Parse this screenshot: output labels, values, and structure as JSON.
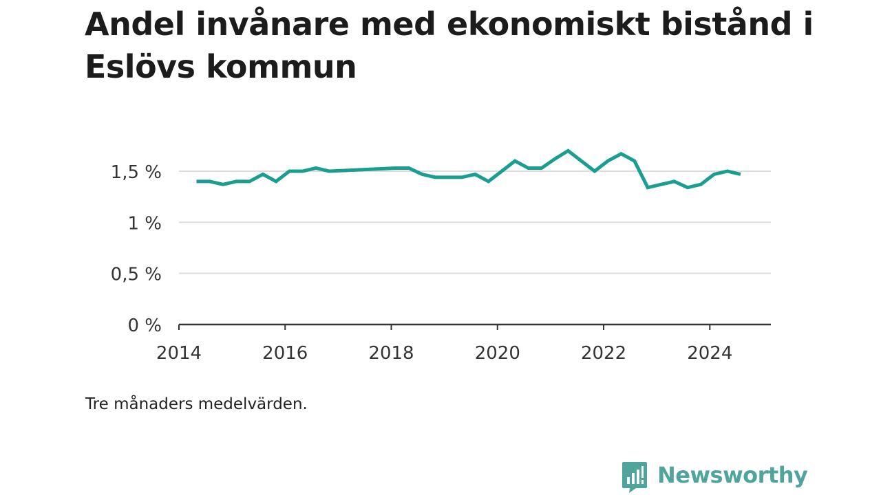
{
  "title": "Andel invånare med ekonomiskt bistånd i Eslövs kommun",
  "note": "Tre månaders medelvärden.",
  "brand": {
    "name": "Newsworthy",
    "color": "#4fa59c",
    "icon": "bar-chart-speech-bubble-icon"
  },
  "chart_data": {
    "type": "line",
    "title": "Andel invånare med ekonomiskt bistånd i Eslövs kommun",
    "xlabel": "",
    "ylabel": "",
    "xlim": [
      2014.0,
      2025.15
    ],
    "ylim": [
      0,
      1.5
    ],
    "x_ticks": [
      2014,
      2016,
      2018,
      2020,
      2022,
      2024
    ],
    "x_tick_labels": [
      "2014",
      "2016",
      "2018",
      "2020",
      "2022",
      "2024"
    ],
    "y_ticks": [
      0,
      0.5,
      1,
      1.5
    ],
    "y_tick_labels": [
      "0 %",
      "0,5 %",
      "1 %",
      "1,5 %"
    ],
    "grid": true,
    "legend": "none",
    "line_color": "#1a9e92",
    "grid_color": "#dddddd",
    "axis_color": "#333333",
    "series": [
      {
        "x": [
          2014.33,
          2014.58,
          2014.83,
          2015.08,
          2015.33,
          2015.58,
          2015.83,
          2016.08,
          2016.33,
          2016.58,
          2016.83,
          2018.08,
          2018.33,
          2018.58,
          2018.83,
          2019.08,
          2019.33,
          2019.58,
          2019.83,
          2020.08,
          2020.33,
          2020.58,
          2020.83,
          2021.08,
          2021.33,
          2021.58,
          2021.83,
          2022.08,
          2022.33,
          2022.58,
          2022.83,
          2023.08,
          2023.33,
          2023.58,
          2023.83,
          2024.08,
          2024.33,
          2024.58
        ],
        "values": [
          1.4,
          1.4,
          1.37,
          1.4,
          1.4,
          1.47,
          1.4,
          1.5,
          1.5,
          1.53,
          1.5,
          1.53,
          1.53,
          1.47,
          1.44,
          1.44,
          1.44,
          1.47,
          1.4,
          1.5,
          1.6,
          1.53,
          1.53,
          1.62,
          1.7,
          1.6,
          1.5,
          1.6,
          1.67,
          1.6,
          1.34,
          1.37,
          1.4,
          1.34,
          1.37,
          1.47,
          1.5,
          1.47
        ]
      }
    ]
  }
}
